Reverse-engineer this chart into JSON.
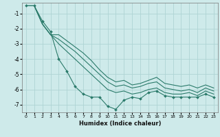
{
  "title": "",
  "xlabel": "Humidex (Indice chaleur)",
  "ylabel": "",
  "bg_color": "#ceeaea",
  "grid_color": "#aed4d4",
  "line_color": "#2a7a6a",
  "xlim": [
    -0.5,
    23.5
  ],
  "ylim": [
    -7.5,
    -0.3
  ],
  "yticks": [
    -1,
    -2,
    -3,
    -4,
    -5,
    -6,
    -7
  ],
  "xticks": [
    0,
    1,
    2,
    3,
    4,
    5,
    6,
    7,
    8,
    9,
    10,
    11,
    12,
    13,
    14,
    15,
    16,
    17,
    18,
    19,
    20,
    21,
    22,
    23
  ],
  "series": [
    {
      "x": [
        0,
        1,
        2,
        3,
        4,
        5,
        6,
        7,
        8,
        9,
        10,
        11,
        12,
        13,
        14,
        15,
        16,
        17,
        18,
        19,
        20,
        21,
        22,
        23
      ],
      "y": [
        -0.5,
        -0.5,
        -1.5,
        -2.2,
        -4.0,
        -4.8,
        -5.8,
        -6.3,
        -6.5,
        -6.5,
        -7.1,
        -7.3,
        -6.7,
        -6.5,
        -6.6,
        -6.2,
        -6.1,
        -6.4,
        -6.5,
        -6.5,
        -6.5,
        -6.5,
        -6.3,
        -6.5
      ],
      "marker": "D",
      "markersize": 2.0
    },
    {
      "x": [
        0,
        1,
        2,
        3,
        4,
        5,
        6,
        7,
        8,
        9,
        10,
        11,
        12,
        13,
        14,
        15,
        16,
        17,
        18,
        19,
        20,
        21,
        22,
        23
      ],
      "y": [
        -0.5,
        -0.5,
        -1.7,
        -2.4,
        -3.0,
        -3.5,
        -4.0,
        -4.5,
        -5.0,
        -5.5,
        -6.0,
        -6.2,
        -6.1,
        -6.3,
        -6.2,
        -6.0,
        -5.9,
        -6.2,
        -6.3,
        -6.3,
        -6.2,
        -6.4,
        -6.1,
        -6.3
      ],
      "marker": null,
      "markersize": 0
    },
    {
      "x": [
        0,
        1,
        2,
        3,
        4,
        5,
        6,
        7,
        8,
        9,
        10,
        11,
        12,
        13,
        14,
        15,
        16,
        17,
        18,
        19,
        20,
        21,
        22,
        23
      ],
      "y": [
        -0.5,
        -0.5,
        -1.7,
        -2.4,
        -2.7,
        -3.1,
        -3.5,
        -4.0,
        -4.5,
        -5.0,
        -5.5,
        -5.8,
        -5.7,
        -5.9,
        -5.8,
        -5.6,
        -5.5,
        -5.9,
        -6.0,
        -6.1,
        -6.0,
        -6.2,
        -5.9,
        -6.1
      ],
      "marker": null,
      "markersize": 0
    },
    {
      "x": [
        0,
        1,
        2,
        3,
        4,
        5,
        6,
        7,
        8,
        9,
        10,
        11,
        12,
        13,
        14,
        15,
        16,
        17,
        18,
        19,
        20,
        21,
        22,
        23
      ],
      "y": [
        -0.5,
        -0.5,
        -1.7,
        -2.4,
        -2.4,
        -2.8,
        -3.2,
        -3.6,
        -4.1,
        -4.7,
        -5.2,
        -5.5,
        -5.4,
        -5.7,
        -5.6,
        -5.4,
        -5.2,
        -5.6,
        -5.7,
        -5.8,
        -5.7,
        -5.9,
        -5.7,
        -5.9
      ],
      "marker": null,
      "markersize": 0
    }
  ]
}
